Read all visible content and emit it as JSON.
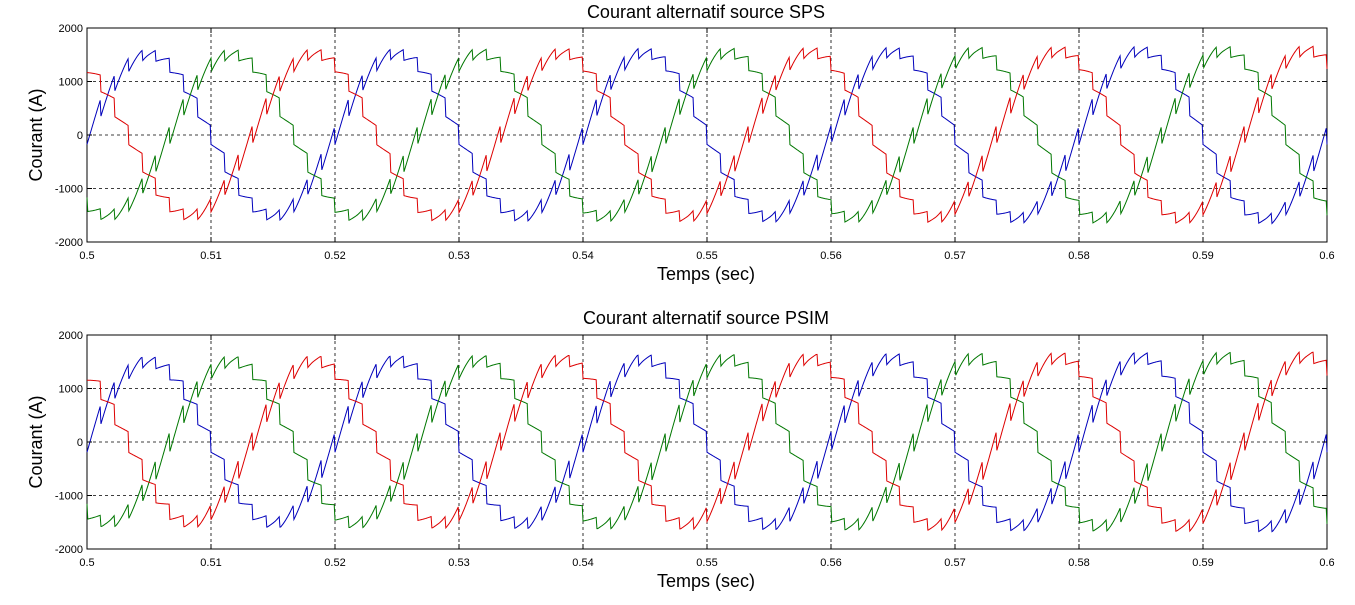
{
  "chart_data": [
    {
      "type": "line",
      "title": "Courant alternatif source SPS",
      "xlabel": "Temps (sec)",
      "ylabel": "Courant (A)",
      "xlim": [
        0.5,
        0.6
      ],
      "ylim": [
        -2000,
        2000
      ],
      "xticks": [
        0.5,
        0.51,
        0.52,
        0.53,
        0.54,
        0.55,
        0.56,
        0.57,
        0.58,
        0.59,
        0.6
      ],
      "xtick_labels": [
        "0.5",
        "0.51",
        "0.52",
        "0.53",
        "0.54",
        "0.55",
        "0.56",
        "0.57",
        "0.58",
        "0.59",
        "0.6"
      ],
      "yticks": [
        -2000,
        -1000,
        0,
        1000,
        2000
      ],
      "ytick_labels": [
        "-2000",
        "-1000",
        "0",
        "1000",
        "2000"
      ],
      "grid": true,
      "waveform": {
        "shape": "three-phase sinusoid with six-pulse switching ripple",
        "frequency_hz": 50,
        "amplitude_start_a": 1500,
        "amplitude_end_a": 1580,
        "ripple_amplitude_a": 220
      },
      "series": [
        {
          "color": "#0000bb",
          "phase_deg": 0
        },
        {
          "color": "#007700",
          "phase_deg": -120
        },
        {
          "color": "#dd0000",
          "phase_deg": 120
        }
      ]
    },
    {
      "type": "line",
      "title": "Courant alternatif source PSIM",
      "xlabel": "Temps (sec)",
      "ylabel": "Courant (A)",
      "xlim": [
        0.5,
        0.6
      ],
      "ylim": [
        -2000,
        2000
      ],
      "xticks": [
        0.5,
        0.51,
        0.52,
        0.53,
        0.54,
        0.55,
        0.56,
        0.57,
        0.58,
        0.59,
        0.6
      ],
      "xtick_labels": [
        "0.5",
        "0.51",
        "0.52",
        "0.53",
        "0.54",
        "0.55",
        "0.56",
        "0.57",
        "0.58",
        "0.59",
        "0.6"
      ],
      "yticks": [
        -2000,
        -1000,
        0,
        1000,
        2000
      ],
      "ytick_labels": [
        "-2000",
        "-1000",
        "0",
        "1000",
        "2000"
      ],
      "grid": true,
      "waveform": {
        "shape": "three-phase sinusoid with six-pulse switching ripple",
        "frequency_hz": 50,
        "amplitude_start_a": 1500,
        "amplitude_end_a": 1600,
        "ripple_amplitude_a": 240
      },
      "series": [
        {
          "color": "#0000bb",
          "phase_deg": 0
        },
        {
          "color": "#007700",
          "phase_deg": -120
        },
        {
          "color": "#dd0000",
          "phase_deg": 120
        }
      ]
    }
  ]
}
